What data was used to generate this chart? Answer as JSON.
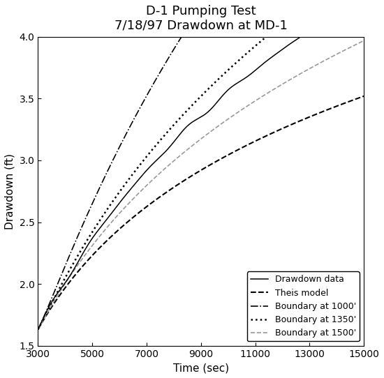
{
  "title": "D-1 Pumping Test\n7/18/97 Drawdown at MD-1",
  "xlabel": "Time (sec)",
  "ylabel": "Drawdown (ft)",
  "xlim": [
    3000,
    15000
  ],
  "ylim": [
    1.5,
    4.0
  ],
  "xticks": [
    3000,
    5000,
    7000,
    9000,
    11000,
    13000,
    15000
  ],
  "yticks": [
    1.5,
    2.0,
    2.5,
    3.0,
    3.5,
    4.0
  ],
  "t_start": 3000,
  "t_end": 15000,
  "n_points": 600,
  "background_color": "#ffffff",
  "legend_labels": [
    "Drawdown data",
    "Theis model",
    "Boundary at 1000'",
    "Boundary at 1350'",
    "Boundary at 1500'"
  ],
  "theis_a": -1.47,
  "theis_b": 0.565,
  "dd_noise_amplitude": 0.022,
  "dd_noise_freq": 45,
  "b1000_scale": 1.15,
  "b1000_power": 1.0,
  "b1350_scale": 0.52,
  "b1350_power": 1.0,
  "b1500_scale": 0.22,
  "b1500_power": 1.0,
  "dd_extra_scale": 0.38,
  "dd_extra_power": 1.0
}
